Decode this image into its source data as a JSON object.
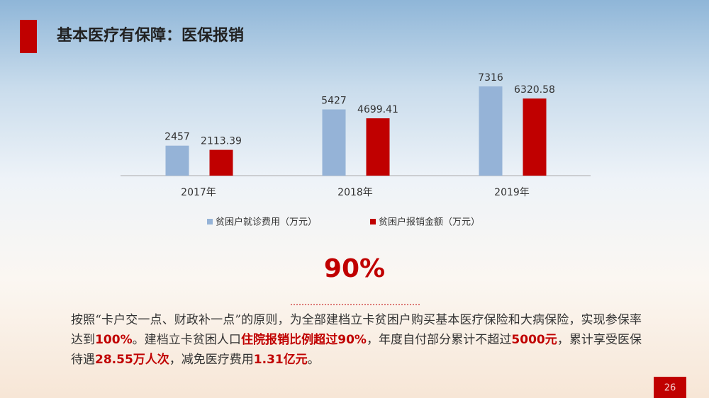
{
  "slide_title": "基本医疗有保障：医保报销",
  "chart_data": {
    "type": "bar",
    "categories": [
      "2017年",
      "2018年",
      "2019年"
    ],
    "series": [
      {
        "name": "贫困户就诊费用（万元）",
        "color": "#95b3d7",
        "values": [
          2457,
          5427,
          7316
        ]
      },
      {
        "name": "贫困户报销金额（万元）",
        "color": "#c00000",
        "values": [
          2113.39,
          4699.41,
          6320.58
        ]
      }
    ],
    "legend": "bottom"
  },
  "headline": "90%",
  "paragraph": [
    {
      "text": "按照“卡户交一点、财政补一点”的原则，为全部建档立卡贫困户购买基本医疗保险和大病保险，实现参保率达到",
      "highlight": false
    },
    {
      "text": "100%",
      "highlight": true
    },
    {
      "text": "。建档立卡贫困人口",
      "highlight": false
    },
    {
      "text": "住院报销比例超过90%",
      "highlight": true
    },
    {
      "text": "，年度自付部分累计不超过",
      "highlight": false
    },
    {
      "text": "5000元",
      "highlight": true
    },
    {
      "text": "，累计享受医保待遇",
      "highlight": false
    },
    {
      "text": "28.55万人次",
      "highlight": true
    },
    {
      "text": "，减免医疗费用",
      "highlight": false
    },
    {
      "text": "1.31亿元",
      "highlight": true
    },
    {
      "text": "。",
      "highlight": false
    }
  ],
  "page_number": "26"
}
